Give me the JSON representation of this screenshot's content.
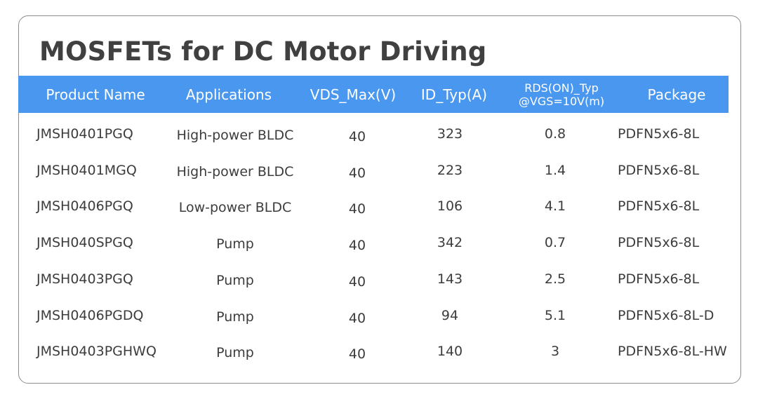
{
  "title": "MOSFETs for DC Motor Driving",
  "header": {
    "product_name": "Product Name",
    "applications": "Applications",
    "vds_max": "VDS_Max(V)",
    "id_typ": "ID_Typ(A)",
    "rds_line1": "RDS(ON)_Typ",
    "rds_line2": "@VGS=10V(m)",
    "package": "Package"
  },
  "colors": {
    "header_bg": "#4a97f0",
    "header_text": "#ffffff",
    "body_text": "#3c3c3c",
    "border": "#8c8c8c"
  },
  "rows": [
    {
      "product": "JMSH0401PGQ",
      "application": "High-power BLDC",
      "vds": "40",
      "id": "323",
      "rds": "0.8",
      "package": "PDFN5x6-8L"
    },
    {
      "product": "JMSH0401MGQ",
      "application": "High-power BLDC",
      "vds": "40",
      "id": "223",
      "rds": "1.4",
      "package": "PDFN5x6-8L"
    },
    {
      "product": "JMSH0406PGQ",
      "application": "Low-power BLDC",
      "vds": "40",
      "id": "106",
      "rds": "4.1",
      "package": "PDFN5x6-8L"
    },
    {
      "product": "JMSH040SPGQ",
      "application": "Pump",
      "vds": "40",
      "id": "342",
      "rds": "0.7",
      "package": "PDFN5x6-8L"
    },
    {
      "product": "JMSH0403PGQ",
      "application": "Pump",
      "vds": "40",
      "id": "143",
      "rds": "2.5",
      "package": "PDFN5x6-8L"
    },
    {
      "product": "JMSH0406PGDQ",
      "application": "Pump",
      "vds": "40",
      "id": "94",
      "rds": "5.1",
      "package": "PDFN5x6-8L-D"
    },
    {
      "product": "JMSH0403PGHWQ",
      "application": "Pump",
      "vds": "40",
      "id": "140",
      "rds": "3",
      "package": "PDFN5x6-8L-HW"
    }
  ]
}
